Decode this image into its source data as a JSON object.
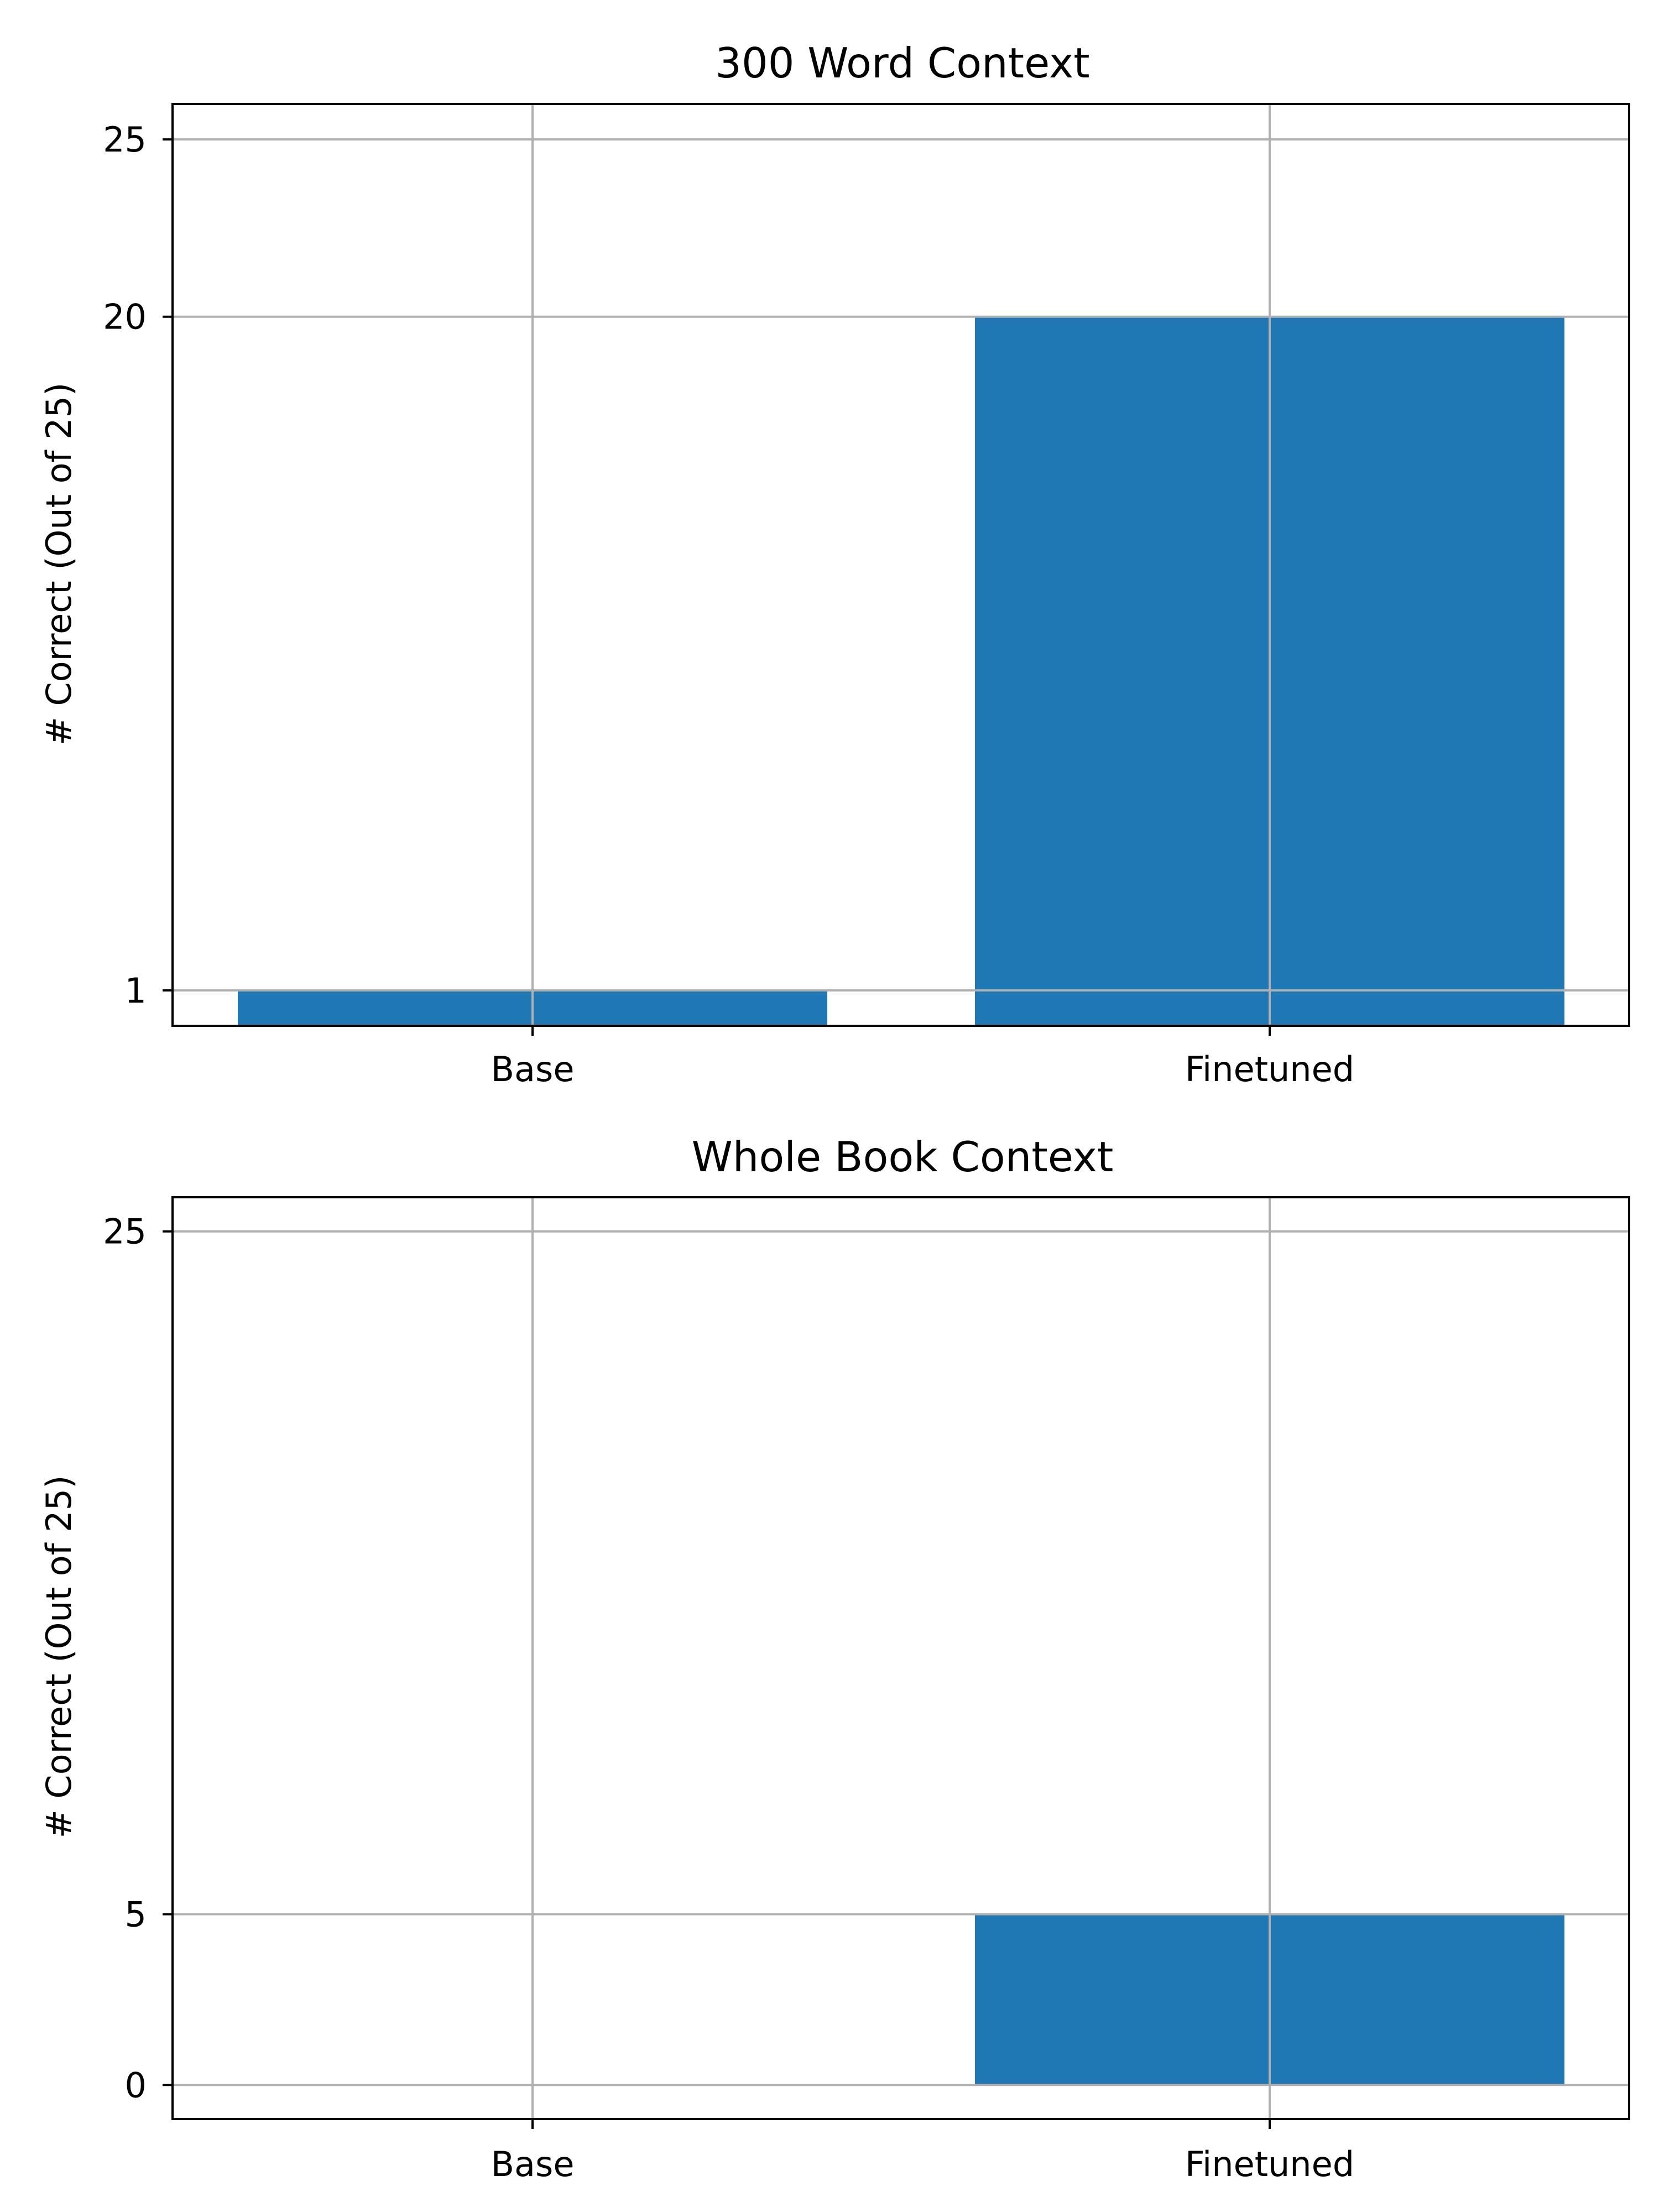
{
  "chart_data": [
    {
      "type": "bar",
      "title": "300 Word Context",
      "ylabel": "# Correct (Out of 25)",
      "xlabel": "",
      "categories": [
        "Base",
        "Finetuned"
      ],
      "values": [
        1,
        20
      ],
      "bar_bottom": 0,
      "ylim": [
        0,
        26
      ],
      "yticks": [
        1,
        20,
        25
      ],
      "ytick_labels": [
        "1",
        "20",
        "25"
      ],
      "grid": true,
      "bar_color": "#1f77b4"
    },
    {
      "type": "bar",
      "title": "Whole Book Context",
      "ylabel": "# Correct (Out of 25)",
      "xlabel": "",
      "categories": [
        "Base",
        "Finetuned"
      ],
      "values": [
        0,
        5
      ],
      "bar_bottom": 0,
      "ylim": [
        -1,
        26
      ],
      "yticks": [
        0,
        5,
        25
      ],
      "ytick_labels": [
        "0",
        "5",
        "25"
      ],
      "grid": true,
      "bar_color": "#1f77b4"
    }
  ]
}
